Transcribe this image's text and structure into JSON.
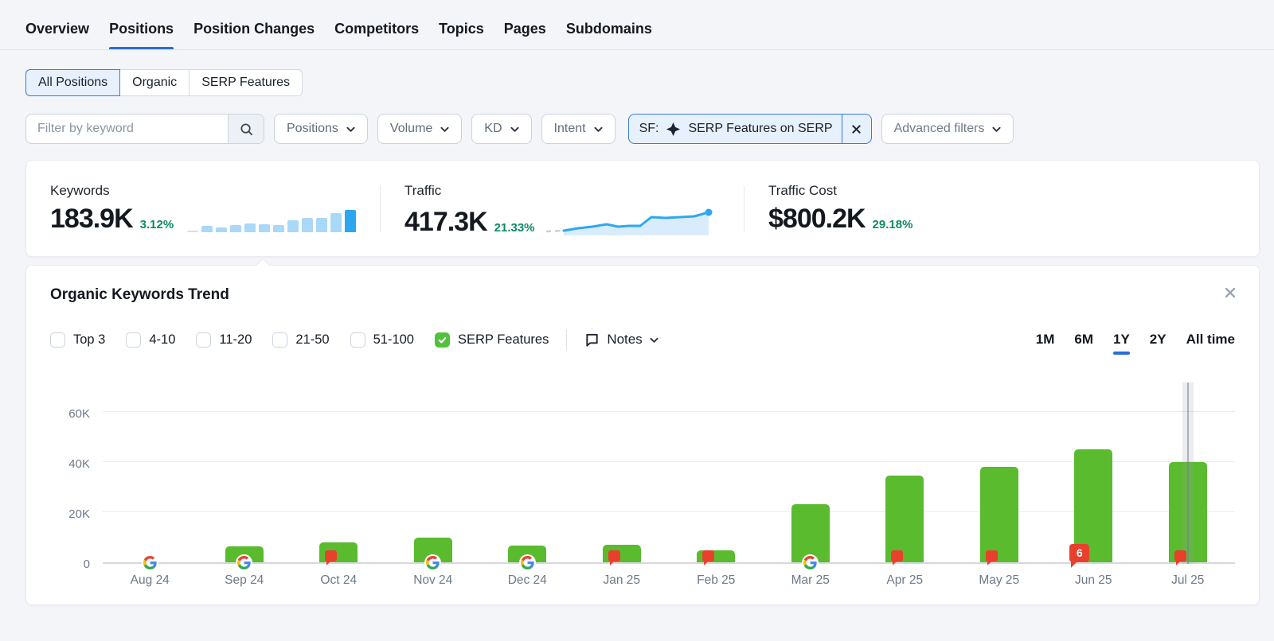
{
  "nav": {
    "tabs": [
      {
        "label": "Overview",
        "active": false
      },
      {
        "label": "Positions",
        "active": true
      },
      {
        "label": "Position Changes",
        "active": false
      },
      {
        "label": "Competitors",
        "active": false
      },
      {
        "label": "Topics",
        "active": false
      },
      {
        "label": "Pages",
        "active": false
      },
      {
        "label": "Subdomains",
        "active": false
      }
    ]
  },
  "view_tabs": [
    {
      "label": "All Positions",
      "selected": true
    },
    {
      "label": "Organic",
      "selected": false
    },
    {
      "label": "SERP Features",
      "selected": false
    }
  ],
  "filters": {
    "keyword_placeholder": "Filter by keyword",
    "dropdowns": [
      "Positions",
      "Volume",
      "KD",
      "Intent"
    ],
    "sf_chip": {
      "prefix": "SF:",
      "label": "SERP Features on SERP"
    },
    "advanced_label": "Advanced filters"
  },
  "metrics": {
    "keywords": {
      "label": "Keywords",
      "value": "183.9K",
      "change": "3.12%",
      "spark": [
        2,
        7,
        6,
        8,
        10,
        9,
        8,
        14,
        17,
        17,
        22,
        26
      ]
    },
    "traffic": {
      "label": "Traffic",
      "value": "417.3K",
      "change": "21.33%",
      "spark": {
        "dashed": [
          [
            0,
            33
          ],
          [
            22,
            32
          ]
        ],
        "line": [
          [
            22,
            32
          ],
          [
            40,
            29
          ],
          [
            58,
            27
          ],
          [
            76,
            24
          ],
          [
            90,
            27
          ],
          [
            104,
            26
          ],
          [
            118,
            26
          ],
          [
            132,
            15
          ],
          [
            150,
            16
          ],
          [
            168,
            15
          ],
          [
            186,
            14
          ],
          [
            204,
            9
          ]
        ],
        "dot": [
          204,
          9
        ]
      }
    },
    "traffic_cost": {
      "label": "Traffic Cost",
      "value": "$800.2K",
      "change": "29.18%"
    }
  },
  "trend_panel": {
    "title": "Organic Keywords Trend",
    "filters": [
      {
        "label": "Top 3",
        "checked": false
      },
      {
        "label": "4-10",
        "checked": false
      },
      {
        "label": "11-20",
        "checked": false
      },
      {
        "label": "21-50",
        "checked": false
      },
      {
        "label": "51-100",
        "checked": false
      },
      {
        "label": "SERP Features",
        "checked": true
      }
    ],
    "notes_label": "Notes",
    "ranges": [
      {
        "label": "1M",
        "active": false
      },
      {
        "label": "6M",
        "active": false
      },
      {
        "label": "1Y",
        "active": true
      },
      {
        "label": "2Y",
        "active": false
      },
      {
        "label": "All time",
        "active": false
      }
    ]
  },
  "chart_data": {
    "type": "bar",
    "title": "Organic Keywords Trend",
    "categories": [
      "Aug 24",
      "Sep 24",
      "Oct 24",
      "Nov 24",
      "Dec 24",
      "Jan 25",
      "Feb 25",
      "Mar 25",
      "Apr 25",
      "May 25",
      "Jun 25",
      "Jul 25"
    ],
    "values": [
      0,
      6300,
      8000,
      9800,
      6700,
      7000,
      4800,
      23000,
      34500,
      38000,
      45000,
      40000
    ],
    "markers": [
      {
        "type": "google"
      },
      {
        "type": "google"
      },
      {
        "type": "note"
      },
      {
        "type": "google"
      },
      {
        "type": "google"
      },
      {
        "type": "note"
      },
      {
        "type": "note"
      },
      {
        "type": "google"
      },
      {
        "type": "note"
      },
      {
        "type": "note"
      },
      {
        "type": "note",
        "count": 6
      },
      {
        "type": "note"
      }
    ],
    "highlight_index": 11,
    "xlabel": "",
    "ylabel": "",
    "ylim": [
      0,
      71000
    ],
    "yticks": [
      {
        "value": 0,
        "label": "0"
      },
      {
        "value": 20000,
        "label": "20K"
      },
      {
        "value": 40000,
        "label": "40K"
      },
      {
        "value": 60000,
        "label": "60K"
      }
    ],
    "grid": true,
    "legend_position": "none",
    "bar_color": "#5abb2e",
    "note_marker_color": "#e8402c",
    "accent_blue": "#2b6cd9"
  }
}
